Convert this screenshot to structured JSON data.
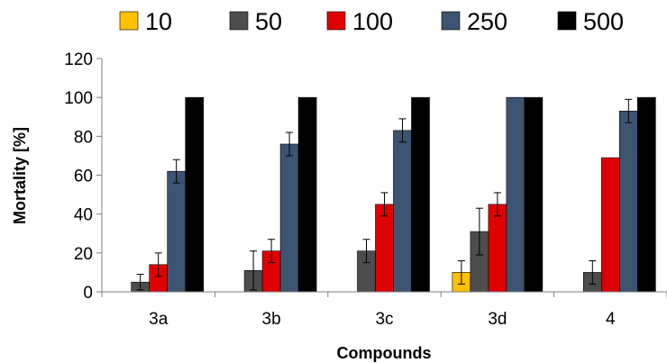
{
  "chart_data": {
    "type": "bar",
    "xlabel": "Compounds",
    "ylabel": "Mortality [%]",
    "ylim": [
      0,
      120
    ],
    "yticks": [
      0,
      20,
      40,
      60,
      80,
      100,
      120
    ],
    "grid": false,
    "legend_position": "top",
    "categories": [
      "3a",
      "3b",
      "3c",
      "3d",
      "4"
    ],
    "series": [
      {
        "name": "10",
        "color": "#FFC000",
        "values": [
          null,
          null,
          null,
          10,
          null
        ],
        "errors": [
          null,
          null,
          null,
          6,
          null
        ]
      },
      {
        "name": "50",
        "color": "#4D4D4D",
        "values": [
          5,
          11,
          21,
          31,
          10
        ],
        "errors": [
          4,
          10,
          6,
          12,
          6
        ]
      },
      {
        "name": "100",
        "color": "#E00000",
        "values": [
          14,
          21,
          45,
          45,
          69
        ],
        "errors": [
          6,
          6,
          6,
          6,
          null
        ]
      },
      {
        "name": "250",
        "color": "#3D5470",
        "values": [
          62,
          76,
          83,
          100,
          93
        ],
        "errors": [
          6,
          6,
          6,
          null,
          6
        ]
      },
      {
        "name": "500",
        "color": "#000000",
        "values": [
          100,
          100,
          100,
          100,
          100
        ],
        "errors": [
          null,
          null,
          null,
          null,
          null
        ]
      }
    ]
  }
}
